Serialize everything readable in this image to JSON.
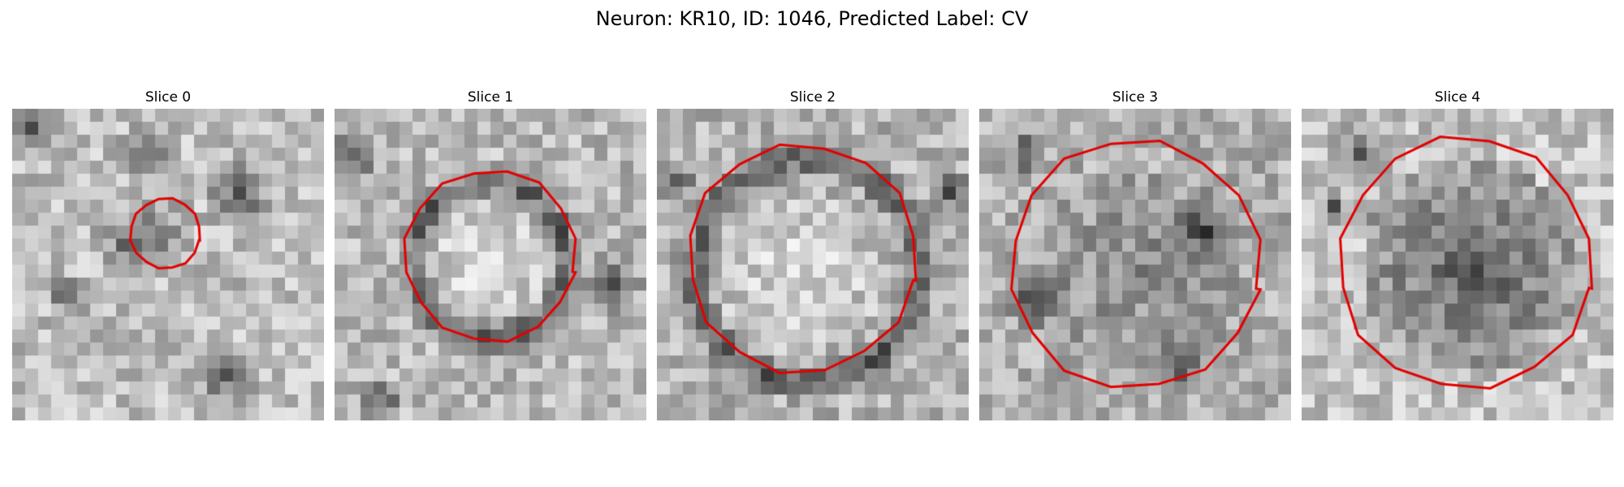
{
  "figure": {
    "title": "Neuron: KR10, ID: 1046, Predicted Label: CV"
  },
  "colors": {
    "contour": "#e30000",
    "background": "#ffffff"
  },
  "slices": [
    {
      "title": "Slice 0"
    },
    {
      "title": "Slice 1"
    },
    {
      "title": "Slice 2"
    },
    {
      "title": "Slice 3"
    },
    {
      "title": "Slice 4"
    }
  ]
}
